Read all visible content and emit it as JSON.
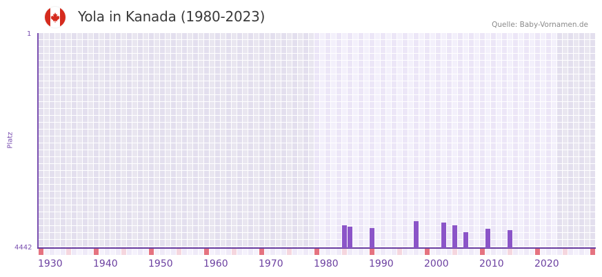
{
  "header": {
    "title": "Yola in Kanada (1980-2023)",
    "source": "Quelle: Baby-Vornamen.de",
    "flag_icon": "canada-flag-icon"
  },
  "colors": {
    "bar": "#8b55c8",
    "axis": "#6b3fa0",
    "decade_marker": "#e57380",
    "half_decade_marker": "#f5d6de",
    "cell_out_range_a": "#e3dfee",
    "cell_out_range_b": "#e9e6f0",
    "cell_in_range_a": "#ece6f7",
    "cell_in_range_b": "#f3f0fb"
  },
  "chart_data": {
    "type": "bar",
    "title": "Yola in Kanada (1980-2023)",
    "subtitle": "Quelle: Baby-Vornamen.de",
    "xlabel": "",
    "ylabel": "Platz",
    "y_inverted": true,
    "ylim": [
      4442,
      1
    ],
    "y_ticks": [
      "1",
      "4442"
    ],
    "xlim": [
      1930,
      2030
    ],
    "x_ticks": [
      "1930",
      "1940",
      "1950",
      "1960",
      "1970",
      "1980",
      "1990",
      "2000",
      "2010",
      "2020"
    ],
    "data_range": [
      1980,
      2023
    ],
    "grid": true,
    "legend": null,
    "x": [
      1985,
      1986,
      1990,
      1998,
      2003,
      2005,
      2007,
      2011,
      2015
    ],
    "values": [
      3970,
      4000,
      4025,
      3885,
      3910,
      3970,
      4115,
      4040,
      4070
    ]
  },
  "axis": {
    "y_top_label": "1",
    "y_bottom_label": "4442",
    "y_title": "Platz"
  }
}
